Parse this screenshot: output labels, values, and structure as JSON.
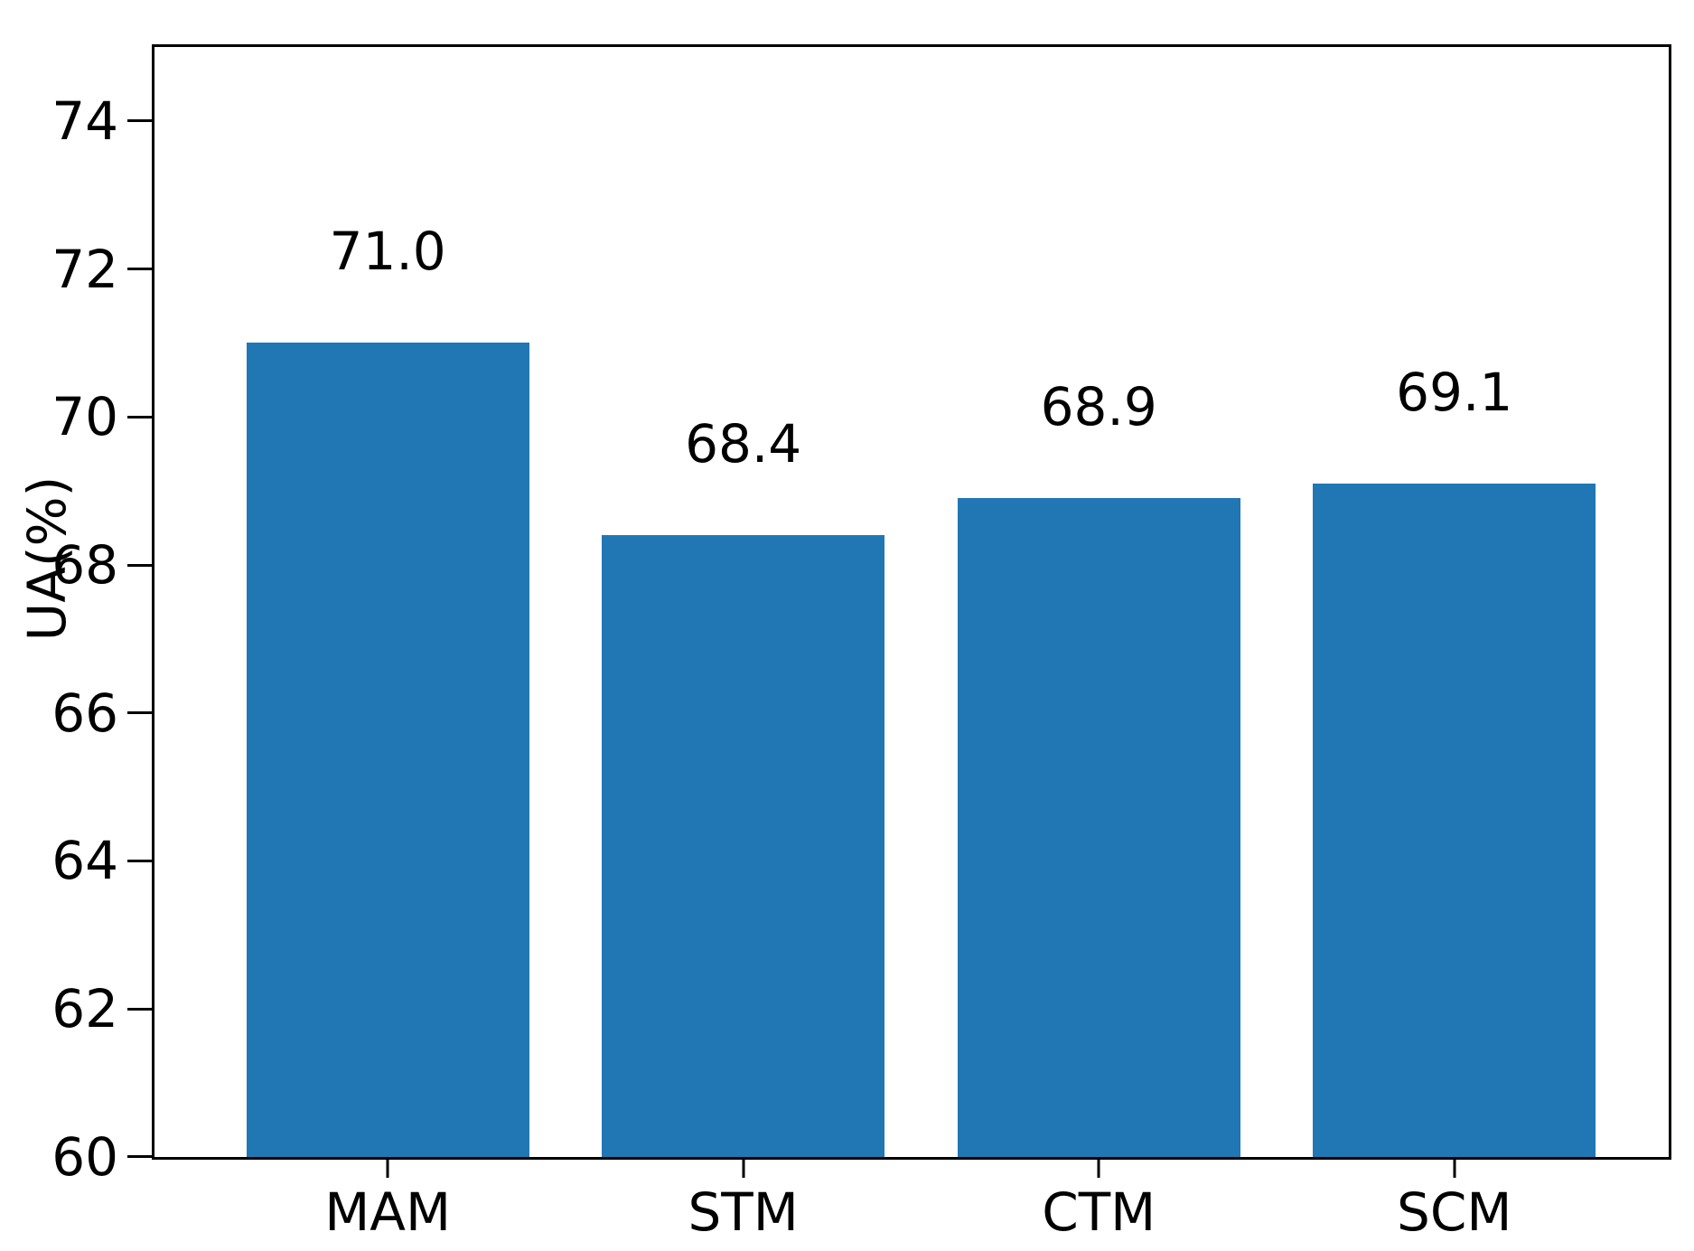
{
  "chart_data": {
    "type": "bar",
    "categories": [
      "MAM",
      "STM",
      "CTM",
      "SCM"
    ],
    "values": [
      71.0,
      68.4,
      68.9,
      69.1
    ],
    "bar_labels": [
      "71.0",
      "68.4",
      "68.9",
      "69.1"
    ],
    "title": "",
    "xlabel": "",
    "ylabel": "UA(%)",
    "ylim": [
      60,
      75
    ],
    "yticks": [
      60,
      62,
      64,
      66,
      68,
      70,
      72,
      74
    ],
    "ytick_labels": [
      "60",
      "62",
      "64",
      "66",
      "68",
      "70",
      "72",
      "74"
    ],
    "bar_color": "#2077b4",
    "axis_color": "#000000",
    "grid": false,
    "legend": null
  }
}
